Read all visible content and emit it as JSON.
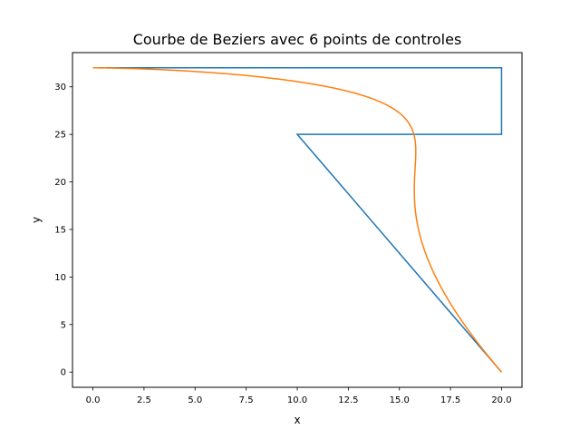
{
  "chart_data": {
    "type": "line",
    "title": "Courbe de Beziers avec 6 points de controles",
    "xlabel": "x",
    "ylabel": "y",
    "xlim": [
      -1.0,
      21.0
    ],
    "ylim": [
      -1.6,
      33.6
    ],
    "xticks": [
      0.0,
      2.5,
      5.0,
      7.5,
      10.0,
      12.5,
      15.0,
      17.5,
      20.0
    ],
    "xtick_labels": [
      "0.0",
      "2.5",
      "5.0",
      "7.5",
      "10.0",
      "12.5",
      "15.0",
      "17.5",
      "20.0"
    ],
    "yticks": [
      0,
      5,
      10,
      15,
      20,
      25,
      30
    ],
    "ytick_labels": [
      "0",
      "5",
      "10",
      "15",
      "20",
      "25",
      "30"
    ],
    "grid": false,
    "series": [
      {
        "role": "control-polygon",
        "color": "#1f77b4",
        "x": [
          20,
          10,
          20,
          20,
          0,
          0
        ],
        "y": [
          0,
          25,
          25,
          32,
          32,
          32
        ]
      },
      {
        "role": "bezier-curve",
        "color": "#ff7f0e",
        "control_points": {
          "x": [
            20,
            10,
            20,
            20,
            0,
            0
          ],
          "y": [
            0,
            25,
            25,
            32,
            32,
            32
          ]
        }
      }
    ]
  }
}
